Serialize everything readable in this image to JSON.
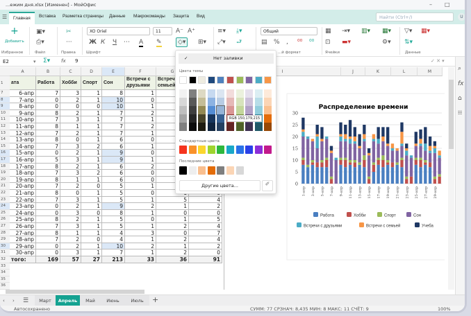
{
  "window": {
    "title": "...ежим дня.xlsx [Изменен] - МойОфис",
    "minimize": "–",
    "maximize": "□"
  },
  "ribbon_tabs": [
    "Главная",
    "Вставка",
    "Разметка страницы",
    "Данные",
    "Макрокоманды",
    "Защита",
    "Вид"
  ],
  "search": {
    "placeholder": "Найти (Ctrl+/)"
  },
  "user_initial": "U",
  "ribbon": {
    "add_label": "Добавить",
    "groups": [
      "Избранное",
      "Файл",
      "Правка",
      "Шрифт",
      "...й формат",
      "Ячейки",
      "Данные"
    ],
    "font_name": "XO Oriel",
    "font_size": "11",
    "number_format": "Общий"
  },
  "formula_bar": {
    "cell_ref": "E2",
    "value": "9"
  },
  "columns": [
    "A",
    "B",
    "C",
    "D",
    "E",
    "F",
    "G",
    "H"
  ],
  "right_columns": [
    "I",
    "J",
    "K",
    "L",
    "M"
  ],
  "header_row": [
    "ата",
    "Работа",
    "Хобби",
    "Спорт",
    "Сон",
    "Встречи с друзьями",
    "Встречи с семьей",
    ""
  ],
  "rows": [
    {
      "n": 7,
      "v": [
        "6-апр",
        7,
        3,
        1,
        8,
        1,
        0,
        0
      ]
    },
    {
      "n": 8,
      "v": [
        "7-апр",
        0,
        2,
        1,
        10,
        0,
        1,
        2
      ]
    },
    {
      "n": 9,
      "v": [
        "8-апр",
        0,
        0,
        0,
        10,
        1,
        0,
        0
      ]
    },
    {
      "n": 10,
      "v": [
        "9-апр",
        8,
        2,
        1,
        7,
        2,
        1,
        5
      ]
    },
    {
      "n": 11,
      "v": [
        "10-апр",
        7,
        3,
        1,
        7,
        1,
        2,
        4
      ]
    },
    {
      "n": 12,
      "v": [
        "11-апр",
        8,
        1,
        1,
        7,
        2,
        1,
        7
      ]
    },
    {
      "n": 13,
      "v": [
        "12-апр",
        7,
        2,
        1,
        7,
        1,
        2,
        4
      ]
    },
    {
      "n": 14,
      "v": [
        "13-апр",
        8,
        0,
        1,
        6,
        0,
        1,
        5
      ]
    },
    {
      "n": 15,
      "v": [
        "14-апр",
        7,
        3,
        2,
        6,
        1,
        2,
        4
      ]
    },
    {
      "n": 16,
      "v": [
        "15-апр",
        0,
        2,
        1,
        9,
        0,
        1,
        2
      ]
    },
    {
      "n": 17,
      "v": [
        "16-апр",
        5,
        3,
        1,
        9,
        1,
        2,
        0
      ]
    },
    {
      "n": 18,
      "v": [
        "17-апр",
        8,
        2,
        1,
        6,
        2,
        0,
        5
      ]
    },
    {
      "n": 19,
      "v": [
        "18-апр",
        7,
        3,
        2,
        6,
        0,
        2,
        4
      ]
    },
    {
      "n": 20,
      "v": [
        "19-апр",
        8,
        1,
        1,
        6,
        0,
        1,
        7
      ]
    },
    {
      "n": 21,
      "v": [
        "20-апр",
        7,
        2,
        0,
        5,
        1,
        2,
        0
      ]
    },
    {
      "n": 22,
      "v": [
        "21-апр",
        8,
        0,
        1,
        5,
        0,
        1,
        0
      ]
    },
    {
      "n": 23,
      "v": [
        "22-апр",
        7,
        3,
        1,
        5,
        1,
        5,
        4
      ]
    },
    {
      "n": 24,
      "v": [
        "23-апр",
        0,
        2,
        1,
        9,
        2,
        1,
        2
      ]
    },
    {
      "n": 25,
      "v": [
        "24-апр",
        0,
        3,
        0,
        8,
        1,
        0,
        0
      ]
    },
    {
      "n": 26,
      "v": [
        "25-апр",
        8,
        2,
        1,
        5,
        0,
        1,
        5
      ]
    },
    {
      "n": 27,
      "v": [
        "26-апр",
        7,
        3,
        1,
        5,
        1,
        2,
        4
      ]
    },
    {
      "n": 28,
      "v": [
        "27-апр",
        8,
        1,
        1,
        4,
        3,
        0,
        7
      ]
    },
    {
      "n": 29,
      "v": [
        "28-апр",
        7,
        2,
        0,
        4,
        1,
        2,
        4
      ]
    },
    {
      "n": 30,
      "v": [
        "29-апр",
        0,
        2,
        1,
        10,
        2,
        1,
        2
      ]
    },
    {
      "n": 31,
      "v": [
        "30-апр",
        0,
        3,
        1,
        7,
        1,
        2,
        0
      ]
    }
  ],
  "total_row": {
    "n": 32,
    "v": [
      "того:",
      169,
      57,
      27,
      213,
      33,
      36,
      91
    ]
  },
  "empty_rows": [
    33,
    34,
    35,
    36
  ],
  "palette": {
    "no_fill": "Нет заливки",
    "theme_label": "Цвета темы",
    "theme": [
      "#ffffff",
      "#000000",
      "#eeece1",
      "#1f497d",
      "#4f81bd",
      "#c0504d",
      "#9bbb59",
      "#8064a2",
      "#4bacc6",
      "#f79646"
    ],
    "shades": [
      [
        "#f2f2f2",
        "#d8d8d8",
        "#bfbfbf",
        "#a5a5a5",
        "#7f7f7f"
      ],
      [
        "#7f7f7f",
        "#595959",
        "#3f3f3f",
        "#262626",
        "#0c0c0c"
      ],
      [
        "#ddd9c3",
        "#c4bd97",
        "#938953",
        "#494429",
        "#1d1b10"
      ],
      [
        "#c6d9f0",
        "#8db3e2",
        "#548dd4",
        "#17365d",
        "#0f243e"
      ],
      [
        "#dbe5f1",
        "#b8cce4",
        "#95b3d7",
        "#366092",
        "#244061"
      ],
      [
        "#f2dcdb",
        "#e5b9b7",
        "#d99694",
        "#953734",
        "#632423"
      ],
      [
        "#ebf1dd",
        "#d7e3bc",
        "#c3d69b",
        "#76923c",
        "#4f6128"
      ],
      [
        "#e5e0ec",
        "#ccc1d9",
        "#b2a2c7",
        "#5f497a",
        "#3f3151"
      ],
      [
        "#dbeef3",
        "#b7dde8",
        "#92cddc",
        "#31859b",
        "#205867"
      ],
      [
        "#fdeada",
        "#fbd5b5",
        "#fac08f",
        "#e36c09",
        "#974806"
      ]
    ],
    "tooltip": "RGB 150,179,215",
    "standard_label": "Стандартные цвета",
    "standard": [
      "#f5341e",
      "#f9922a",
      "#fbd62e",
      "#9ed42e",
      "#2eb83e",
      "#1aa8c8",
      "#2a72e8",
      "#2a40e8",
      "#8c2ed8",
      "#c21a8c"
    ],
    "recent_label": "Последние цвета",
    "recent": [
      "#000000",
      "#eeeeee",
      "#f9bf8f",
      "#e36c09",
      "#7f7f7f",
      "#fbd5b5",
      "#d8d8d8"
    ],
    "more_colors": "Другие цвета..."
  },
  "chart_data": {
    "type": "bar",
    "stacked": true,
    "title": "Распределение времени",
    "ylim": [
      0,
      30
    ],
    "yticks": [
      0,
      5,
      10,
      15,
      20,
      25,
      30
    ],
    "categories": [
      "1-апр",
      "2-апр",
      "3-апр",
      "4-апр",
      "5-апр",
      "6-апр",
      "7-апр",
      "8-апр",
      "9-апр",
      "10-апр",
      "11-апр",
      "12-апр",
      "13-апр",
      "14-апр",
      "15-апр",
      "16-апр",
      "17-апр",
      "18-апр",
      "19-апр",
      "20-апр",
      "21-апр",
      "22-апр",
      "23-апр",
      "24-апр",
      "25-апр",
      "26-апр",
      "27-апр",
      "28-апр",
      "29-апр",
      "30-апр"
    ],
    "tick_labels": [
      "1-апр",
      "3-апр",
      "5-апр",
      "7-апр",
      "9-апр",
      "11-апр",
      "13-апр",
      "15-апр",
      "17-апр",
      "19-апр",
      "21-апр",
      "23-апр",
      "25-апр",
      "27-апр",
      "29-апр"
    ],
    "legend": "bottom",
    "series": [
      {
        "name": "Работа",
        "color": "#4a7fc1",
        "values": [
          8,
          7,
          8,
          7,
          7,
          7,
          0,
          0,
          8,
          7,
          8,
          7,
          8,
          7,
          0,
          5,
          8,
          7,
          8,
          7,
          8,
          7,
          0,
          0,
          8,
          7,
          8,
          7,
          0,
          0
        ]
      },
      {
        "name": "Хобби",
        "color": "#c0504d",
        "values": [
          2,
          0,
          1,
          2,
          2,
          3,
          2,
          0,
          2,
          3,
          1,
          2,
          0,
          3,
          2,
          3,
          2,
          3,
          1,
          2,
          0,
          3,
          2,
          3,
          2,
          3,
          1,
          2,
          2,
          3
        ]
      },
      {
        "name": "Спорт",
        "color": "#9bbb59",
        "values": [
          1,
          1,
          1,
          0,
          1,
          1,
          1,
          0,
          1,
          1,
          1,
          1,
          1,
          2,
          1,
          1,
          1,
          2,
          1,
          0,
          1,
          1,
          1,
          0,
          1,
          1,
          1,
          0,
          1,
          1
        ]
      },
      {
        "name": "Сон",
        "color": "#8064a2",
        "values": [
          9,
          11,
          8,
          6,
          8,
          8,
          10,
          10,
          7,
          7,
          7,
          7,
          6,
          6,
          9,
          9,
          6,
          6,
          6,
          5,
          5,
          5,
          9,
          8,
          5,
          5,
          4,
          4,
          10,
          7
        ]
      },
      {
        "name": "Встречи с друзьями",
        "color": "#4bacc6",
        "values": [
          2,
          1,
          0,
          5,
          0,
          1,
          0,
          1,
          2,
          1,
          2,
          1,
          0,
          1,
          0,
          1,
          2,
          0,
          0,
          1,
          0,
          1,
          2,
          1,
          0,
          1,
          3,
          1,
          2,
          1
        ]
      },
      {
        "name": "Встречи с семьей",
        "color": "#f79646",
        "values": [
          1,
          0,
          1,
          1,
          1,
          0,
          1,
          0,
          1,
          2,
          1,
          2,
          1,
          2,
          1,
          2,
          0,
          2,
          1,
          2,
          1,
          5,
          1,
          0,
          1,
          2,
          0,
          2,
          1,
          2
        ]
      },
      {
        "name": "Учеба",
        "color": "#1f3864",
        "values": [
          5,
          0,
          0,
          4,
          5,
          0,
          2,
          0,
          5,
          4,
          7,
          4,
          5,
          4,
          2,
          0,
          5,
          4,
          7,
          0,
          0,
          4,
          2,
          0,
          5,
          4,
          7,
          4,
          2,
          0
        ]
      }
    ]
  },
  "sheet_tabs": [
    "Март",
    "Апрель",
    "Май",
    "Июнь",
    "Июль"
  ],
  "active_sheet": "Апрель",
  "status": {
    "left": "Автосохранено",
    "stats": "СУММ: 77  СРЗНАЧ: 8,435  МИН: 8  МАКС: 11  СЧЁТ: 9",
    "zoom": "100%"
  },
  "colors": {
    "accent": "#14a291",
    "ribbon_bg": "#d3ede9",
    "selection": "#dbe8f7"
  }
}
